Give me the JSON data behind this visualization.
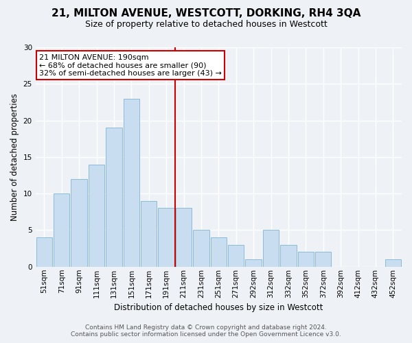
{
  "title": "21, MILTON AVENUE, WESTCOTT, DORKING, RH4 3QA",
  "subtitle": "Size of property relative to detached houses in Westcott",
  "xlabel": "Distribution of detached houses by size in Westcott",
  "ylabel": "Number of detached properties",
  "bar_labels": [
    "51sqm",
    "71sqm",
    "91sqm",
    "111sqm",
    "131sqm",
    "151sqm",
    "171sqm",
    "191sqm",
    "211sqm",
    "231sqm",
    "251sqm",
    "271sqm",
    "292sqm",
    "312sqm",
    "332sqm",
    "352sqm",
    "372sqm",
    "392sqm",
    "412sqm",
    "432sqm",
    "452sqm"
  ],
  "bar_heights": [
    4,
    10,
    12,
    14,
    19,
    23,
    9,
    8,
    8,
    5,
    4,
    3,
    1,
    5,
    3,
    2,
    2,
    0,
    0,
    0,
    1
  ],
  "bar_color": "#c9ddf0",
  "bar_edge_color": "#7fb3d3",
  "reference_line_x": 7.5,
  "reference_line_color": "#cc0000",
  "ylim": [
    0,
    30
  ],
  "yticks": [
    0,
    5,
    10,
    15,
    20,
    25,
    30
  ],
  "annotation_title": "21 MILTON AVENUE: 190sqm",
  "annotation_line1": "← 68% of detached houses are smaller (90)",
  "annotation_line2": "32% of semi-detached houses are larger (43) →",
  "annotation_box_facecolor": "#ffffff",
  "annotation_box_edgecolor": "#cc0000",
  "footer_line1": "Contains HM Land Registry data © Crown copyright and database right 2024.",
  "footer_line2": "Contains public sector information licensed under the Open Government Licence v3.0.",
  "background_color": "#eef2f7",
  "grid_color": "#ffffff",
  "title_fontsize": 11,
  "subtitle_fontsize": 9,
  "axis_label_fontsize": 8.5,
  "tick_fontsize": 7.5,
  "annotation_fontsize": 8,
  "footer_fontsize": 6.5
}
